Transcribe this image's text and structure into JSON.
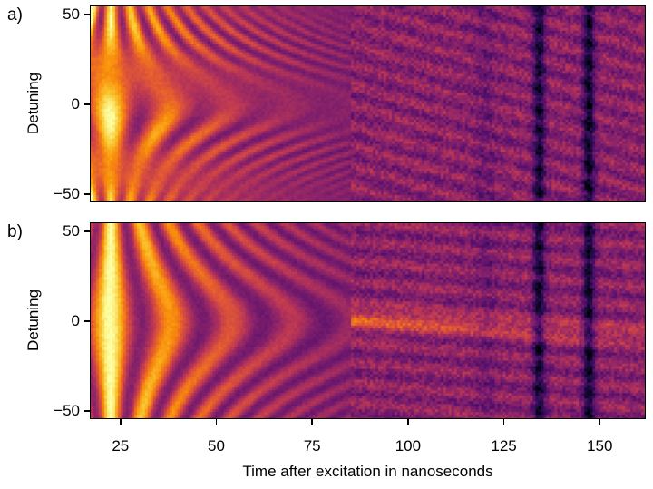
{
  "chart_data": [
    {
      "type": "heatmap",
      "panel_label": "a)",
      "title": "",
      "xlabel": "Time after excitation in nanoseconds",
      "ylabel": "Detuning",
      "xlim": [
        17,
        162
      ],
      "ylim": [
        -55,
        55
      ],
      "x_ticks": [
        25,
        50,
        75,
        100,
        125,
        150
      ],
      "y_ticks": [
        50,
        0,
        -50
      ],
      "y_tick_labels": [
        "50",
        "0",
        "−50"
      ],
      "colormap": "inferno",
      "grid": false,
      "description": "Chevron-like interference pattern: bright yellow lobes at early times (~20-50 ns) decaying to dark purple by ~100 ns; dark vertical stripes near 134 and 147 ns; diagonal fringes crossing zero detuning after ~120 ns."
    },
    {
      "type": "heatmap",
      "panel_label": "b)",
      "title": "",
      "xlabel": "Time after excitation in nanoseconds",
      "ylabel": "Detuning",
      "xlim": [
        17,
        162
      ],
      "ylim": [
        -55,
        55
      ],
      "x_ticks": [
        25,
        50,
        75,
        100,
        125,
        150
      ],
      "y_ticks": [
        50,
        0,
        -50
      ],
      "y_tick_labels": [
        "50",
        "0",
        "−50"
      ],
      "colormap": "inferno",
      "grid": false,
      "description": "Similar pattern with stronger vertical banding at early times, noisier mid region, and a persistent bright band near zero detuning extending to ~150 ns; dark vertical stripes near 134 and 147 ns."
    }
  ],
  "figure": {
    "panel_a_label": "a)",
    "panel_b_label": "b)",
    "ylabel": "Detuning",
    "xlabel": "Time after excitation in nanoseconds",
    "x_tick_labels": [
      "25",
      "50",
      "75",
      "100",
      "125",
      "150"
    ],
    "y_tick_labels": [
      "50",
      "0",
      "−50"
    ]
  }
}
